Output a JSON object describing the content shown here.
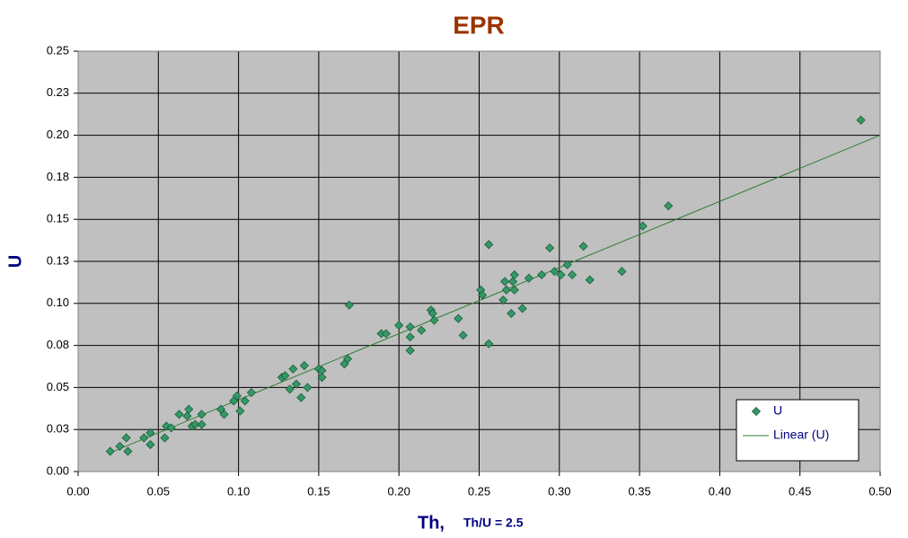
{
  "chart_data": {
    "type": "scatter",
    "title": "EPR",
    "x_label": "Th,",
    "x_note": "Th/U = 2.5",
    "y_label": "U",
    "xlim": [
      0,
      0.5
    ],
    "ylim": [
      0,
      0.25
    ],
    "xticks": [
      {
        "value": 0,
        "label": "0.00"
      },
      0.05,
      {
        "value": 0.1,
        "label": "0.10"
      },
      0.15,
      {
        "value": 0.2,
        "label": "0.20"
      },
      0.25,
      {
        "value": 0.3,
        "label": "0.30"
      },
      0.35,
      {
        "value": 0.4,
        "label": "0.40"
      },
      0.45,
      {
        "value": 0.5,
        "label": "0.50"
      }
    ],
    "yticks": [
      {
        "value": 0,
        "label": "0.00"
      },
      {
        "value": 0.025,
        "label": "0.03"
      },
      0.05,
      {
        "value": 0.075,
        "label": "0.08"
      },
      {
        "value": 0.1,
        "label": "0.10"
      },
      {
        "value": 0.125,
        "label": "0.13"
      },
      0.15,
      {
        "value": 0.175,
        "label": "0.18"
      },
      {
        "value": 0.2,
        "label": "0.20"
      },
      {
        "value": 0.225,
        "label": "0.23"
      },
      0.25
    ],
    "grid": true,
    "legend": "lower-right",
    "series": [
      {
        "name": "U",
        "type": "scatter",
        "color": "#339966",
        "x": [
          0.02,
          0.026,
          0.03,
          0.031,
          0.041,
          0.045,
          0.045,
          0.054,
          0.055,
          0.058,
          0.063,
          0.068,
          0.069,
          0.071,
          0.073,
          0.077,
          0.077,
          0.089,
          0.091,
          0.097,
          0.099,
          0.101,
          0.104,
          0.108,
          0.127,
          0.129,
          0.132,
          0.134,
          0.136,
          0.139,
          0.141,
          0.143,
          0.15,
          0.152,
          0.152,
          0.166,
          0.168,
          0.169,
          0.189,
          0.192,
          0.2,
          0.207,
          0.207,
          0.207,
          0.214,
          0.22,
          0.221,
          0.222,
          0.237,
          0.24,
          0.251,
          0.252,
          0.256,
          0.256,
          0.265,
          0.266,
          0.267,
          0.27,
          0.271,
          0.272,
          0.272,
          0.277,
          0.281,
          0.289,
          0.294,
          0.297,
          0.301,
          0.305,
          0.308,
          0.315,
          0.319,
          0.339,
          0.352,
          0.368,
          0.488
        ],
        "values": [
          0.012,
          0.015,
          0.02,
          0.012,
          0.02,
          0.023,
          0.016,
          0.02,
          0.027,
          0.026,
          0.034,
          0.033,
          0.037,
          0.027,
          0.028,
          0.034,
          0.028,
          0.037,
          0.034,
          0.042,
          0.045,
          0.036,
          0.042,
          0.047,
          0.056,
          0.057,
          0.049,
          0.061,
          0.052,
          0.044,
          0.063,
          0.05,
          0.061,
          0.06,
          0.056,
          0.064,
          0.067,
          0.099,
          0.082,
          0.082,
          0.087,
          0.086,
          0.08,
          0.072,
          0.084,
          0.096,
          0.094,
          0.09,
          0.091,
          0.081,
          0.108,
          0.105,
          0.076,
          0.135,
          0.102,
          0.113,
          0.108,
          0.094,
          0.113,
          0.117,
          0.108,
          0.097,
          0.115,
          0.117,
          0.133,
          0.119,
          0.117,
          0.123,
          0.117,
          0.134,
          0.114,
          0.119,
          0.146,
          0.158,
          0.209
        ]
      },
      {
        "name": "Linear (U)",
        "type": "line",
        "color": "#2e7d32",
        "x": [
          0.02,
          0.5
        ],
        "values": [
          0.0112,
          0.2
        ]
      }
    ]
  }
}
